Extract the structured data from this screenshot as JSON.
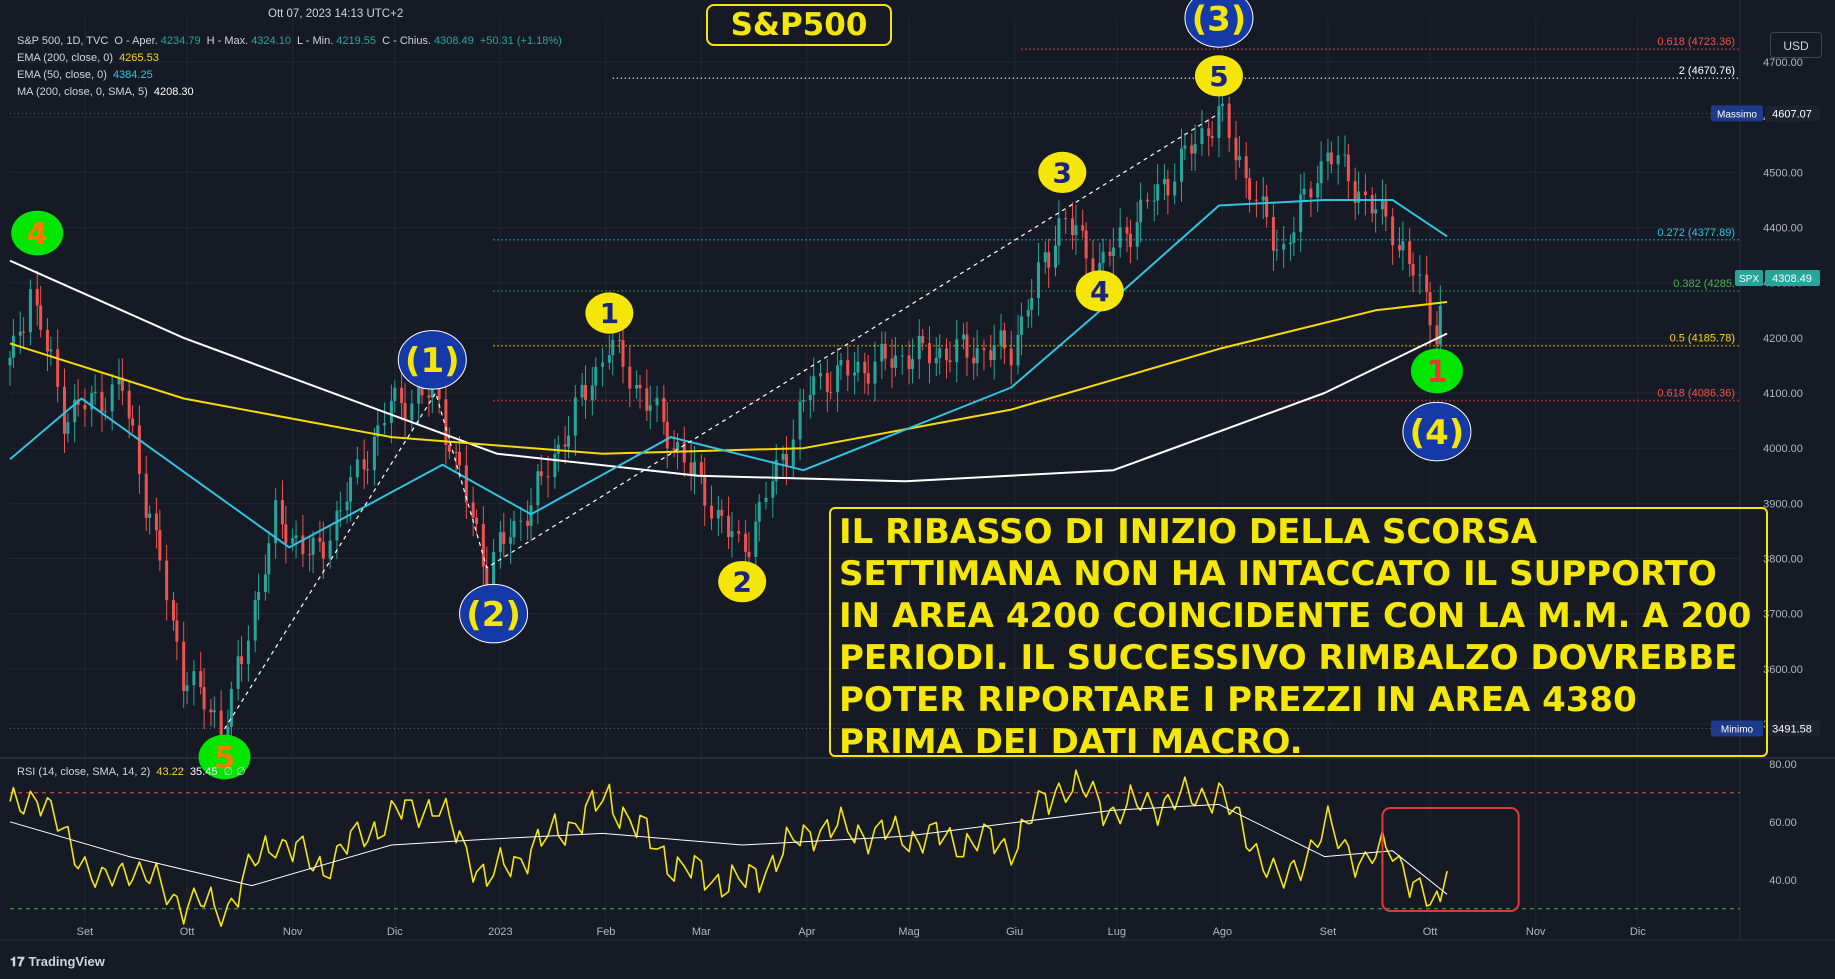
{
  "header": {
    "timestamp": "Ott 07, 2023 14:13 UTC+2",
    "symbol": "S&P 500, 1D, TVC",
    "open_label": "O - Aper.",
    "open": "4234.79",
    "high_label": "H - Max.",
    "high": "4324.10",
    "low_label": "L - Min.",
    "low": "4219.55",
    "close_label": "C - Chius.",
    "close": "4308.49",
    "change": "+50.31 (+1.18%)",
    "indicators": [
      {
        "label": "EMA (200, close, 0)",
        "value": "4265.53",
        "color": "#f5d90a"
      },
      {
        "label": "EMA (50, close, 0)",
        "value": "4384.25",
        "color": "#31c3e0"
      },
      {
        "label": "MA (200, close, 0, SMA, 5)",
        "value": "4208.30",
        "color": "#ffffff"
      }
    ],
    "rsi_label": "RSI (14, close, SMA, 14, 2)",
    "rsi_value": "43.22",
    "rsi_ma_value": "35.45",
    "rsi_extra": "∅ ∅"
  },
  "title": "S&P500",
  "currency": "USD",
  "note": "IL RIBASSO DI INIZIO DELLA SCORSA SETTIMANA NON HA INTACCATO IL SUPPORTO IN AREA 4200 COINCIDENTE CON LA M.M. A 200 PERIODI. IL SUCCESSIVO RIMBALZO DOVREBBE POTER RIPORTARE I PREZZI IN AREA 4380 PRIMA DEI DATI MACRO.",
  "logo": "TradingView",
  "colors": {
    "background": "#161a25",
    "up": "#26a69a",
    "down": "#ef5350",
    "ema200": "#f5d90a",
    "ema50": "#31c3e0",
    "ma200": "#ffffff",
    "annotation": "#f5e60a",
    "rsi": "#f5e60a",
    "rsi_ma": "#ffffff"
  },
  "chart_data": {
    "type": "candlestick",
    "x_ticks": [
      "Set",
      "Ott",
      "Nov",
      "Dic",
      "2023",
      "Feb",
      "Mar",
      "Apr",
      "Mag",
      "Giu",
      "Lug",
      "Ago",
      "Set",
      "Ott",
      "Nov",
      "Dic"
    ],
    "x_tick_dates": [
      "2022-09-01",
      "2022-10-01",
      "2022-11-01",
      "2022-12-01",
      "2023-01-01",
      "2023-02-01",
      "2023-03-01",
      "2023-04-01",
      "2023-05-01",
      "2023-06-01",
      "2023-07-01",
      "2023-08-01",
      "2023-09-01",
      "2023-10-01",
      "2023-11-01",
      "2023-12-01"
    ],
    "x_range": [
      "2022-08-10",
      "2023-12-31"
    ],
    "y_ticks": [
      3500,
      3600,
      3700,
      3800,
      3900,
      4000,
      4100,
      4200,
      4300,
      4400,
      4500,
      4600,
      4700
    ],
    "y_range": [
      3440,
      4780
    ],
    "price_path": [
      [
        "2022-08-10",
        4150
      ],
      [
        "2022-08-16",
        4290
      ],
      [
        "2022-08-26",
        4060
      ],
      [
        "2022-09-12",
        4110
      ],
      [
        "2022-09-30",
        3590
      ],
      [
        "2022-10-12",
        3491
      ],
      [
        "2022-10-27",
        3870
      ],
      [
        "2022-11-08",
        3800
      ],
      [
        "2022-11-30",
        4080
      ],
      [
        "2022-12-13",
        4100
      ],
      [
        "2022-12-28",
        3783
      ],
      [
        "2023-01-10",
        3900
      ],
      [
        "2023-02-02",
        4190
      ],
      [
        "2023-02-22",
        4000
      ],
      [
        "2023-03-13",
        3808
      ],
      [
        "2023-04-03",
        4120
      ],
      [
        "2023-05-01",
        4170
      ],
      [
        "2023-05-31",
        4180
      ],
      [
        "2023-06-15",
        4420
      ],
      [
        "2023-06-26",
        4330
      ],
      [
        "2023-07-31",
        4607
      ],
      [
        "2023-08-18",
        4350
      ],
      [
        "2023-09-01",
        4540
      ],
      [
        "2023-09-12",
        4450
      ],
      [
        "2023-09-20",
        4400
      ],
      [
        "2023-09-29",
        4280
      ],
      [
        "2023-10-03",
        4216
      ],
      [
        "2023-10-06",
        4308
      ]
    ],
    "ema200": [
      [
        "2022-08-10",
        4190
      ],
      [
        "2022-09-30",
        4090
      ],
      [
        "2022-11-30",
        4020
      ],
      [
        "2023-01-31",
        3990
      ],
      [
        "2023-03-31",
        4000
      ],
      [
        "2023-05-31",
        4070
      ],
      [
        "2023-07-31",
        4180
      ],
      [
        "2023-09-15",
        4250
      ],
      [
        "2023-10-06",
        4265
      ]
    ],
    "ema50": [
      [
        "2022-08-10",
        3980
      ],
      [
        "2022-08-31",
        4090
      ],
      [
        "2022-10-31",
        3820
      ],
      [
        "2022-12-15",
        3970
      ],
      [
        "2023-01-10",
        3880
      ],
      [
        "2023-02-20",
        4020
      ],
      [
        "2023-03-31",
        3960
      ],
      [
        "2023-05-31",
        4110
      ],
      [
        "2023-06-30",
        4270
      ],
      [
        "2023-07-31",
        4440
      ],
      [
        "2023-08-31",
        4450
      ],
      [
        "2023-09-20",
        4450
      ],
      [
        "2023-10-06",
        4384
      ]
    ],
    "ma200": [
      [
        "2022-08-10",
        4340
      ],
      [
        "2022-09-30",
        4200
      ],
      [
        "2022-12-31",
        3990
      ],
      [
        "2023-02-28",
        3950
      ],
      [
        "2023-04-30",
        3940
      ],
      [
        "2023-06-30",
        3960
      ],
      [
        "2023-08-31",
        4100
      ],
      [
        "2023-10-06",
        4208
      ]
    ],
    "fib_levels": [
      {
        "label": "0.618 (4723.36)",
        "value": 4723.36,
        "from": "2023-06-03",
        "color": "#ef5350",
        "style": "dots"
      },
      {
        "label": "2 (4670.76)",
        "value": 4670.76,
        "from": "2023-02-03",
        "color": "#ffffff",
        "style": "dots"
      },
      {
        "label": "0.272 (4377.89)",
        "value": 4377.89,
        "from": "2022-12-30",
        "color": "#31c3e0",
        "style": "dots"
      },
      {
        "label": "0.382 (4285.",
        "value": 4285,
        "from": "2022-12-30",
        "color": "#4caf50",
        "style": "dots"
      },
      {
        "label": "0.5 (4185.78)",
        "value": 4185.78,
        "from": "2022-12-30",
        "color": "#f5d90a",
        "style": "dots"
      },
      {
        "label": "0.618 (4086.36)",
        "value": 4086.36,
        "from": "2022-12-30",
        "color": "#ef5350",
        "style": "dots"
      }
    ],
    "ref_lines": [
      {
        "label": "Massimo",
        "value": 4607.07
      },
      {
        "label": "Minimo",
        "value": 3491.58
      }
    ],
    "last_price": {
      "label": "SPX",
      "value": 4308.49
    },
    "wave_labels": [
      {
        "text": "4",
        "date": "2022-08-18",
        "price": 4390,
        "style": "green"
      },
      {
        "text": "5",
        "date": "2022-10-12",
        "price": 3440,
        "style": "green"
      },
      {
        "text": "(1)",
        "date": "2022-12-12",
        "price": 4160,
        "style": "blue"
      },
      {
        "text": "(2)",
        "date": "2022-12-30",
        "price": 3700,
        "style": "blue"
      },
      {
        "text": "1",
        "date": "2023-02-02",
        "price": 4245,
        "style": "yellow"
      },
      {
        "text": "2",
        "date": "2023-03-13",
        "price": 3758,
        "style": "yellow"
      },
      {
        "text": "3",
        "date": "2023-06-15",
        "price": 4500,
        "style": "yellow"
      },
      {
        "text": "4",
        "date": "2023-06-26",
        "price": 4285,
        "style": "yellow"
      },
      {
        "text": "5",
        "date": "2023-07-31",
        "price": 4675,
        "style": "yellow"
      },
      {
        "text": "(3)",
        "date": "2023-07-31",
        "price": 4780,
        "style": "blue"
      },
      {
        "text": "1",
        "date": "2023-10-03",
        "price": 4140,
        "style": "green"
      },
      {
        "text": "(4)",
        "date": "2023-10-03",
        "price": 4030,
        "style": "blue"
      }
    ],
    "wave_lines": [
      [
        [
          "2022-10-12",
          3491
        ],
        [
          "2022-12-13",
          4100
        ],
        [
          "2022-12-28",
          3783
        ],
        [
          "2023-07-31",
          4607
        ]
      ]
    ],
    "rsi": {
      "y_ticks": [
        40,
        60,
        80
      ],
      "y_range": [
        22,
        82
      ],
      "overbought": 70,
      "oversold": 30,
      "path": [
        [
          "2022-08-10",
          64
        ],
        [
          "2022-08-18",
          70
        ],
        [
          "2022-08-26",
          55
        ],
        [
          "2022-09-06",
          38
        ],
        [
          "2022-09-14",
          45
        ],
        [
          "2022-09-30",
          32
        ],
        [
          "2022-10-12",
          30
        ],
        [
          "2022-10-27",
          55
        ],
        [
          "2022-11-08",
          44
        ],
        [
          "2022-11-30",
          62
        ],
        [
          "2022-12-13",
          66
        ],
        [
          "2022-12-28",
          40
        ],
        [
          "2023-01-12",
          52
        ],
        [
          "2023-02-02",
          68
        ],
        [
          "2023-02-22",
          44
        ],
        [
          "2023-03-13",
          38
        ],
        [
          "2023-04-03",
          58
        ],
        [
          "2023-05-01",
          55
        ],
        [
          "2023-05-31",
          52
        ],
        [
          "2023-06-15",
          74
        ],
        [
          "2023-06-30",
          64
        ],
        [
          "2023-07-31",
          70
        ],
        [
          "2023-08-18",
          38
        ],
        [
          "2023-09-01",
          58
        ],
        [
          "2023-09-12",
          45
        ],
        [
          "2023-09-20",
          52
        ],
        [
          "2023-09-29",
          32
        ],
        [
          "2023-10-03",
          30
        ],
        [
          "2023-10-06",
          43
        ]
      ],
      "ma_path": [
        [
          "2022-08-10",
          60
        ],
        [
          "2022-09-14",
          48
        ],
        [
          "2022-10-20",
          38
        ],
        [
          "2022-11-30",
          52
        ],
        [
          "2022-12-28",
          54
        ],
        [
          "2023-01-31",
          56
        ],
        [
          "2023-03-13",
          52
        ],
        [
          "2023-04-30",
          55
        ],
        [
          "2023-06-30",
          64
        ],
        [
          "2023-07-31",
          66
        ],
        [
          "2023-08-31",
          48
        ],
        [
          "2023-09-20",
          50
        ],
        [
          "2023-10-06",
          35
        ]
      ],
      "highlight_box": [
        "2023-09-17",
        "2023-10-27"
      ]
    }
  }
}
